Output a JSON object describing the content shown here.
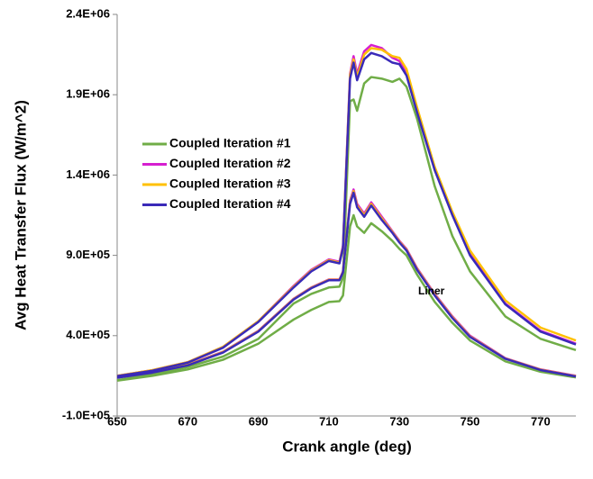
{
  "chart_data": {
    "type": "line",
    "y_label": "Avg Heat Transfer Flux  (W/m^2)",
    "x_label": "Crank angle (deg)",
    "annotation": "Liner",
    "x": [
      650,
      660,
      670,
      680,
      690,
      700,
      705,
      710,
      713,
      714,
      716,
      717,
      718,
      720,
      722,
      725,
      728,
      730,
      732,
      735,
      740,
      745,
      750,
      760,
      770,
      780
    ],
    "xlim": [
      650,
      780
    ],
    "xticks": [
      650,
      670,
      690,
      710,
      730,
      750,
      770
    ],
    "ylim": [
      -100000,
      2400000
    ],
    "yticks": [
      {
        "value": -100000,
        "label": "-1.0E+05"
      },
      {
        "value": 400000,
        "label": "4.0E+05"
      },
      {
        "value": 900000,
        "label": "9.0E+05"
      },
      {
        "value": 1400000,
        "label": "1.4E+06"
      },
      {
        "value": 1900000,
        "label": "1.9E+06"
      },
      {
        "value": 2400000,
        "label": "2.4E+06"
      }
    ],
    "grid": false,
    "series": [
      {
        "name": "Coupled Iteration #1",
        "color": "#70ad47",
        "values": [
          123000,
          160000,
          205000,
          270000,
          380000,
          600000,
          660000,
          700000,
          705000,
          760000,
          1860000,
          1870000,
          1800000,
          1970000,
          2010000,
          2000000,
          1980000,
          2000000,
          1950000,
          1750000,
          1330000,
          1020000,
          800000,
          520000,
          380000,
          310000
        ],
        "liner_values": [
          120000,
          150000,
          190000,
          250000,
          350000,
          500000,
          560000,
          610000,
          615000,
          650000,
          1080000,
          1150000,
          1080000,
          1040000,
          1100000,
          1050000,
          990000,
          940000,
          900000,
          780000,
          610000,
          480000,
          370000,
          240000,
          175000,
          140000
        ]
      },
      {
        "name": "Coupled Iteration #2",
        "color": "#d61fd0",
        "values": [
          150000,
          185000,
          235000,
          330000,
          490000,
          710000,
          810000,
          875000,
          860000,
          960000,
          2030000,
          2140000,
          2030000,
          2170000,
          2210000,
          2190000,
          2130000,
          2110000,
          2030000,
          1800000,
          1440000,
          1160000,
          910000,
          600000,
          430000,
          350000
        ],
        "liner_values": [
          140000,
          175000,
          220000,
          300000,
          430000,
          630000,
          700000,
          750000,
          750000,
          800000,
          1240000,
          1310000,
          1220000,
          1160000,
          1230000,
          1140000,
          1050000,
          990000,
          940000,
          820000,
          660000,
          520000,
          400000,
          260000,
          190000,
          150000
        ]
      },
      {
        "name": "Coupled Iteration #3",
        "color": "#ffc000",
        "values": [
          150000,
          185000,
          235000,
          330000,
          490000,
          705000,
          805000,
          870000,
          855000,
          950000,
          2020000,
          2120000,
          2010000,
          2150000,
          2190000,
          2180000,
          2140000,
          2130000,
          2060000,
          1820000,
          1450000,
          1170000,
          930000,
          620000,
          450000,
          370000
        ],
        "liner_values": [
          140000,
          172000,
          218000,
          298000,
          428000,
          628000,
          698000,
          748000,
          748000,
          798000,
          1230000,
          1300000,
          1210000,
          1150000,
          1220000,
          1130000,
          1045000,
          985000,
          935000,
          815000,
          655000,
          515000,
          395000,
          258000,
          188000,
          148000
        ]
      },
      {
        "name": "Coupled Iteration #4",
        "color": "#3a2ab8",
        "values": [
          148000,
          182000,
          232000,
          325000,
          485000,
          700000,
          800000,
          865000,
          850000,
          945000,
          2000000,
          2100000,
          1990000,
          2120000,
          2160000,
          2140000,
          2100000,
          2090000,
          2020000,
          1790000,
          1430000,
          1150000,
          900000,
          595000,
          425000,
          345000
        ],
        "liner_values": [
          138000,
          170000,
          215000,
          295000,
          425000,
          625000,
          695000,
          745000,
          745000,
          795000,
          1220000,
          1290000,
          1200000,
          1140000,
          1210000,
          1120000,
          1040000,
          980000,
          930000,
          810000,
          650000,
          510000,
          392000,
          256000,
          186000,
          146000
        ]
      }
    ]
  }
}
